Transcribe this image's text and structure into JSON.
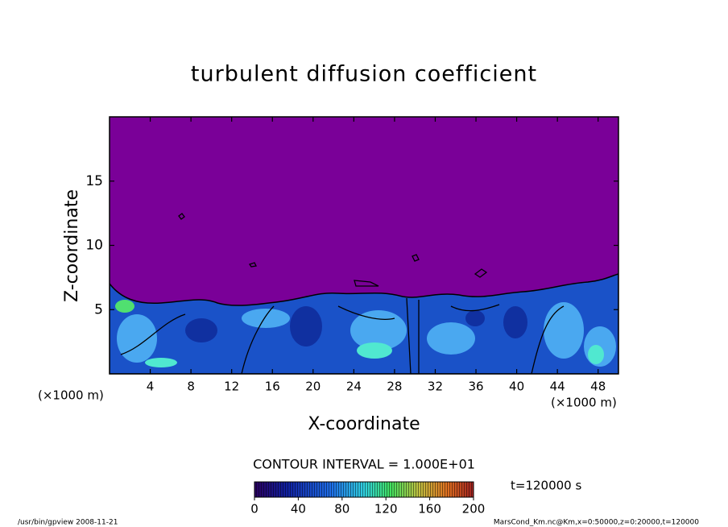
{
  "chart_data": {
    "type": "contour",
    "title": "turbulent diffusion coefficient",
    "x_label": "X-coordinate",
    "y_label": "Z-coordinate",
    "x_unit": "(×1000 m)",
    "y_unit": "(×1000 m)",
    "xlim": [
      0,
      50
    ],
    "xticks": [
      4,
      8,
      12,
      16,
      20,
      24,
      28,
      32,
      36,
      40,
      44,
      48
    ],
    "ylim": [
      0,
      20
    ],
    "yticks": [
      5,
      10,
      15
    ],
    "contour_interval": "CONTOUR INTERVAL = 1.000E+01",
    "time_label": "t=120000 s",
    "colorbar": {
      "lim": [
        0,
        200
      ],
      "ticks": [
        0,
        40,
        80,
        120,
        160,
        200
      ]
    },
    "footer_left": "/usr/bin/gpview   2008-11-21",
    "footer_right": "MarsCond_Km.nc@Km,x=0:50000,z=0:20000,t=120000"
  }
}
